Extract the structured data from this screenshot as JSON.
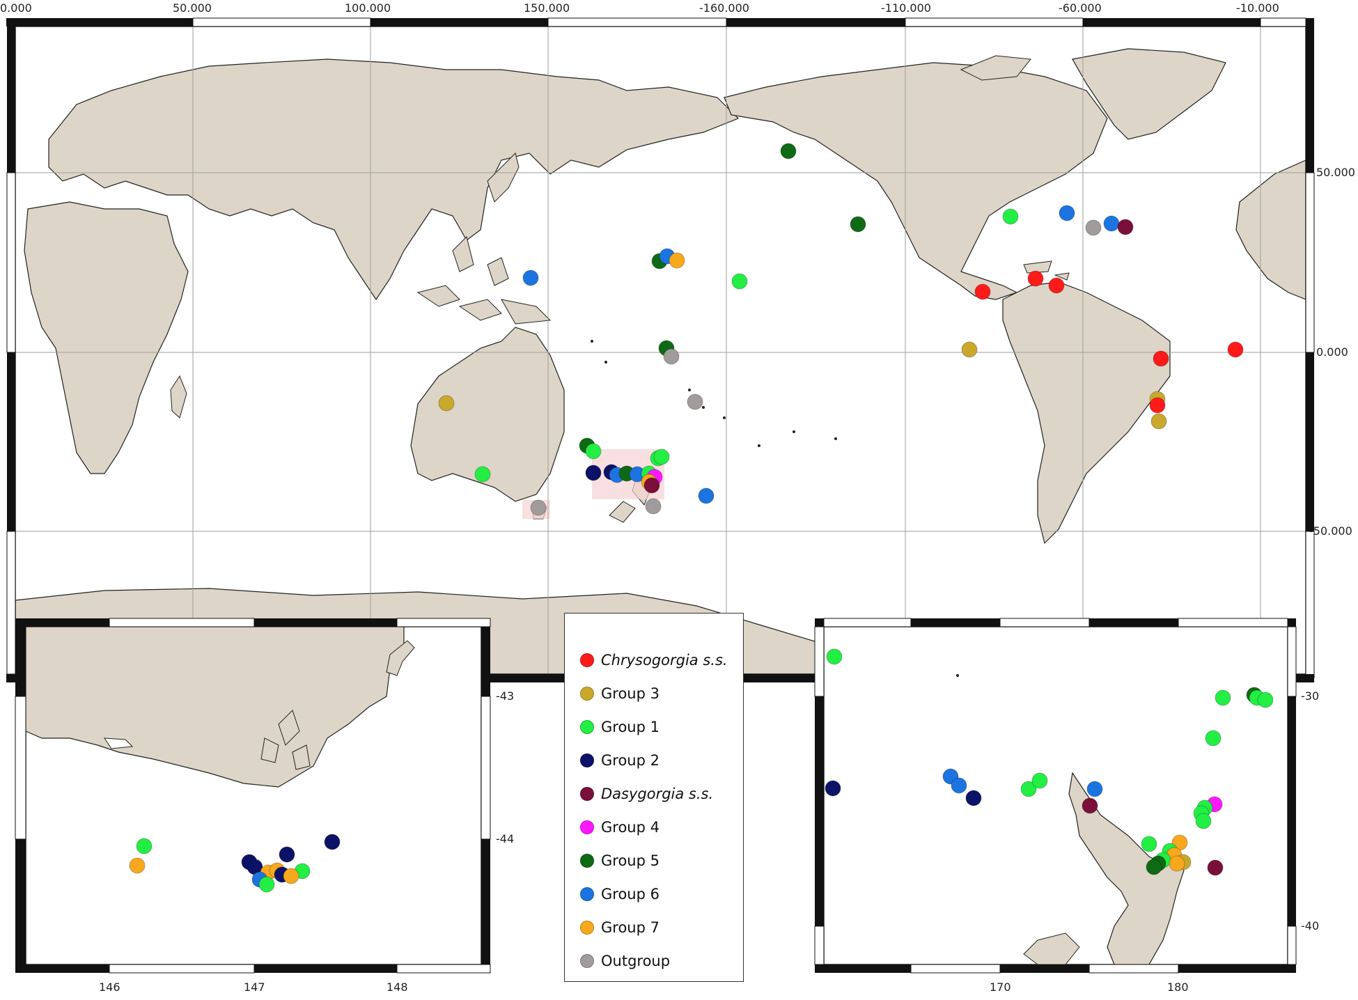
{
  "colors": {
    "land": "#ddd5c7",
    "ocean": "#ffffff",
    "grid": "#9e9e9e",
    "highlight": "#f6d3d3",
    "chrysogorgia": "#ff1a1a",
    "group3": "#c9a82c",
    "group1": "#22ee44",
    "group2": "#0c1268",
    "dasygorgia": "#7a0f3a",
    "group4": "#ff18ff",
    "group5": "#0e6a14",
    "group6": "#1b74e0",
    "group7": "#f8a81c",
    "outgroup": "#a09c9c"
  },
  "main_map": {
    "top_ticks": [
      "0.000",
      "50.000",
      "100.000",
      "150.000",
      "-160.000",
      "-110.000",
      "-60.000",
      "-10.000"
    ],
    "right_ticks": [
      "50.000",
      "0.000",
      "-50.000"
    ]
  },
  "inset_left": {
    "right_ticks": [
      "-43",
      "-44"
    ],
    "bottom_ticks": [
      "146",
      "147",
      "148"
    ]
  },
  "inset_right": {
    "right_ticks": [
      "-30",
      "-40"
    ],
    "bottom_ticks": [
      "170",
      "180"
    ]
  },
  "legend": [
    {
      "label": "Chrysogorgia s.s.",
      "color_key": "chrysogorgia",
      "italic": true
    },
    {
      "label": "Group 3",
      "color_key": "group3",
      "italic": false
    },
    {
      "label": "Group 1",
      "color_key": "group1",
      "italic": false
    },
    {
      "label": "Group 2",
      "color_key": "group2",
      "italic": false
    },
    {
      "label": "Dasygorgia s.s.",
      "color_key": "dasygorgia",
      "italic": true
    },
    {
      "label": "Group 4",
      "color_key": "group4",
      "italic": false
    },
    {
      "label": "Group 5",
      "color_key": "group5",
      "italic": false
    },
    {
      "label": "Group 6",
      "color_key": "group6",
      "italic": false
    },
    {
      "label": "Group 7",
      "color_key": "group7",
      "italic": false
    },
    {
      "label": "Outgroup",
      "color_key": "outgroup",
      "italic": false
    }
  ]
}
